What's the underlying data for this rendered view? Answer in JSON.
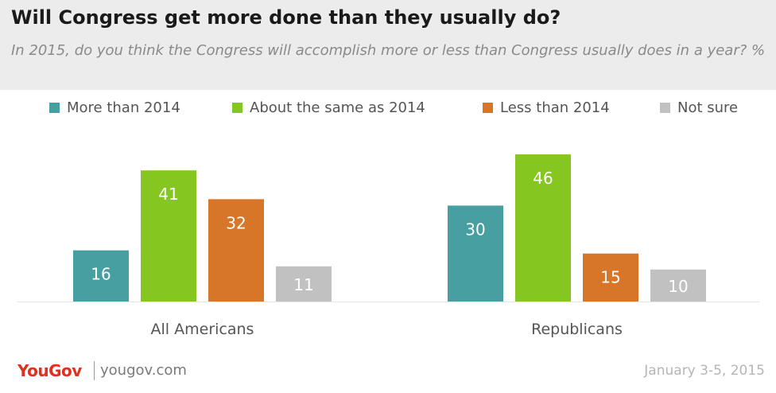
{
  "header": {
    "title": "Will Congress get more done than they usually do?",
    "subtitle": "In 2015, do you think the Congress will accomplish more or less than Congress usually does in a year? %"
  },
  "chart_data": {
    "type": "bar",
    "title": "Will Congress get more done than they usually do?",
    "subtitle": "In 2015, do you think the Congress will accomplish more or less than Congress usually does in a year? %",
    "xlabel": "",
    "ylabel": "",
    "ylim": [
      0,
      50
    ],
    "grid": false,
    "legend_position": "top",
    "categories": [
      "All Americans",
      "Republicans"
    ],
    "series": [
      {
        "name": "More than 2014",
        "color": "#479fa1",
        "values": [
          16,
          30
        ]
      },
      {
        "name": "About the same as 2014",
        "color": "#86c621",
        "values": [
          41,
          46
        ]
      },
      {
        "name": "Less than 2014",
        "color": "#d77629",
        "values": [
          32,
          15
        ]
      },
      {
        "name": "Not sure",
        "color": "#c1c1c1",
        "values": [
          11,
          10
        ]
      }
    ]
  },
  "footer": {
    "logo": "YouGov",
    "site": "yougov.com",
    "date": "January 3-5, 2015"
  }
}
